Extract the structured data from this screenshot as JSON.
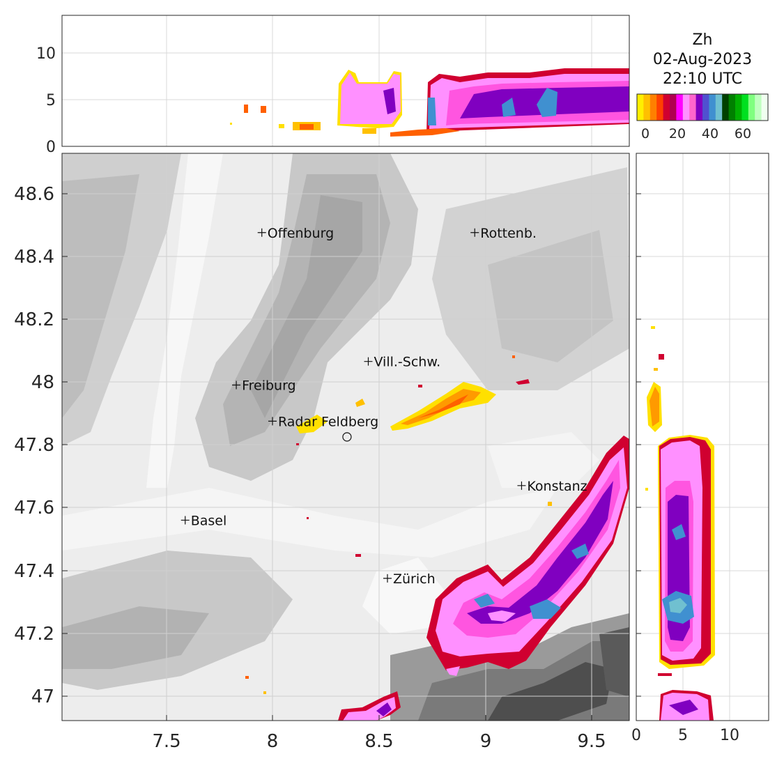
{
  "title": {
    "variable": "Zh",
    "date": "02-Aug-2023",
    "time": "22:10 UTC"
  },
  "colorbar": {
    "colors": [
      "#ffef00",
      "#ffc000",
      "#ff8000",
      "#ff4000",
      "#d00030",
      "#b00050",
      "#ff00ff",
      "#ff90ff",
      "#ff66cc",
      "#8000c0",
      "#5050d0",
      "#4090d0",
      "#70c0d0",
      "#004000",
      "#008000",
      "#00b000",
      "#00e020",
      "#80ff80",
      "#c0ffc0",
      "#f0fff0"
    ],
    "tick_labels": [
      "0",
      "20",
      "40",
      "60"
    ]
  },
  "axes": {
    "main_x_ticks": [
      "7.5",
      "8",
      "8.5",
      "9",
      "9.5"
    ],
    "main_y_ticks": [
      "48.6",
      "48.4",
      "48.2",
      "48",
      "47.8",
      "47.6",
      "47.4",
      "47.2",
      "47"
    ],
    "top_y_ticks": [
      "10",
      "5",
      "0"
    ],
    "right_x_ticks": [
      "0",
      "5",
      "10"
    ]
  },
  "cities": [
    {
      "name": "Offenburg",
      "lon": 7.95,
      "lat": 48.475
    },
    {
      "name": "Rottenb.",
      "lon": 8.95,
      "lat": 48.475
    },
    {
      "name": "Vill.-Schw.",
      "lon": 8.45,
      "lat": 48.065
    },
    {
      "name": "Freiburg",
      "lon": 7.83,
      "lat": 47.99
    },
    {
      "name": "Radar Feldberg",
      "lon": 8.0,
      "lat": 47.875
    },
    {
      "name": "Konstanz",
      "lon": 9.17,
      "lat": 47.67
    },
    {
      "name": "Basel",
      "lon": 7.59,
      "lat": 47.56
    },
    {
      "name": "Zürich",
      "lon": 8.54,
      "lat": 47.375
    }
  ],
  "radar_site": {
    "lon": 8.35,
    "lat": 47.825
  }
}
